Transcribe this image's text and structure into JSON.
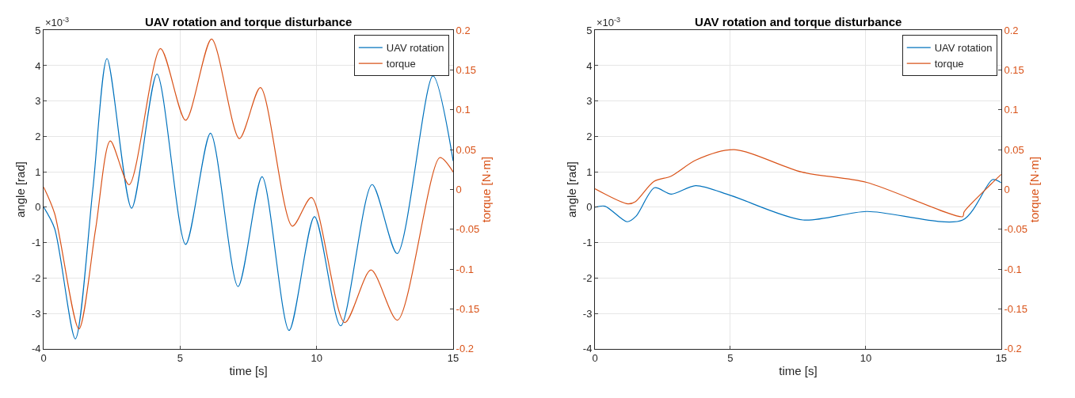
{
  "chart_data": [
    {
      "type": "line",
      "title": "UAV rotation and torque disturbance",
      "xlabel": "time [s]",
      "ylabel": "angle [rad]",
      "y2label": "torque [N·m]",
      "annotations": [
        "×10$^{-3}$"
      ],
      "series": [
        {
          "name": "UAV rotation",
          "color": "#0072bd",
          "x": [
            0,
            0.4,
            1.16,
            1.8,
            2.32,
            3.22,
            4.15,
            5.2,
            6.11,
            7.12,
            8.0,
            8.99,
            9.92,
            10.88,
            12.03,
            12.95,
            14.26,
            15
          ],
          "values": [
            0,
            -0.6,
            -3.72,
            0.5,
            4.2,
            -0.03,
            3.76,
            -1.05,
            2.09,
            -2.24,
            0.86,
            -3.48,
            -0.27,
            -3.35,
            0.64,
            -1.31,
            3.71,
            1.31
          ]
        },
        {
          "name": "torque",
          "color": "#d95319",
          "axis": "y2",
          "x": [
            0,
            0.4,
            1.29,
            1.9,
            2.44,
            3.13,
            4.28,
            5.2,
            6.15,
            7.17,
            7.94,
            9.11,
            9.81,
            11.03,
            11.99,
            12.96,
            14.51,
            15
          ],
          "values": [
            0.003,
            -0.03,
            -0.175,
            -0.05,
            0.061,
            0.006,
            0.177,
            0.087,
            0.189,
            0.064,
            0.128,
            -0.046,
            -0.01,
            -0.167,
            -0.101,
            -0.164,
            0.04,
            0.022
          ]
        }
      ],
      "xlim": [
        0,
        15
      ],
      "xticks": [
        0,
        5,
        10,
        15
      ],
      "ylim": [
        -4,
        5
      ],
      "yticks": [
        -4,
        -3,
        -2,
        -1,
        0,
        1,
        2,
        3,
        4,
        5
      ],
      "y2lim": [
        -0.2,
        0.2
      ],
      "y2ticks": [
        -0.2,
        -0.15,
        -0.1,
        -0.05,
        0,
        0.05,
        0.1,
        0.15,
        0.2
      ],
      "grid": true,
      "legend": "top right",
      "line_style": "solid",
      "marker": "none"
    },
    {
      "type": "line",
      "title": "UAV rotation and torque disturbance",
      "xlabel": "time [s]",
      "ylabel": "angle [rad]",
      "y2label": "torque [N·m]",
      "annotations": [
        "×10$^{-3}$"
      ],
      "series": [
        {
          "name": "UAV rotation",
          "color": "#0072bd",
          "x": [
            0,
            0.37,
            1.19,
            1.52,
            2.2,
            2.82,
            3.72,
            5.02,
            7.68,
            10.03,
            13.58,
            14.68,
            15
          ],
          "values": [
            0,
            0.03,
            -0.41,
            -0.25,
            0.55,
            0.37,
            0.61,
            0.33,
            -0.36,
            -0.12,
            -0.36,
            0.78,
            0.69
          ]
        },
        {
          "name": "torque",
          "color": "#d95319",
          "axis": "y2",
          "x": [
            0,
            1.22,
            1.5,
            2.17,
            2.82,
            3.73,
            5.14,
            7.63,
            10.03,
            13.58,
            13.63,
            14.63,
            15
          ],
          "values": [
            0.001,
            -0.018,
            -0.015,
            0.01,
            0.017,
            0.037,
            0.05,
            0.022,
            0.009,
            -0.034,
            -0.028,
            0.007,
            0.019
          ]
        }
      ],
      "xlim": [
        0,
        15
      ],
      "xticks": [
        0,
        5,
        10,
        15
      ],
      "ylim": [
        -4,
        5
      ],
      "yticks": [
        -4,
        -3,
        -2,
        -1,
        0,
        1,
        2,
        3,
        4,
        5
      ],
      "y2lim": [
        -0.2,
        0.2
      ],
      "y2ticks": [
        -0.2,
        -0.15,
        -0.1,
        -0.05,
        0,
        0.05,
        0.1,
        0.15,
        0.2
      ],
      "grid": true,
      "legend": "top right",
      "line_style": "solid",
      "marker": "none"
    }
  ]
}
